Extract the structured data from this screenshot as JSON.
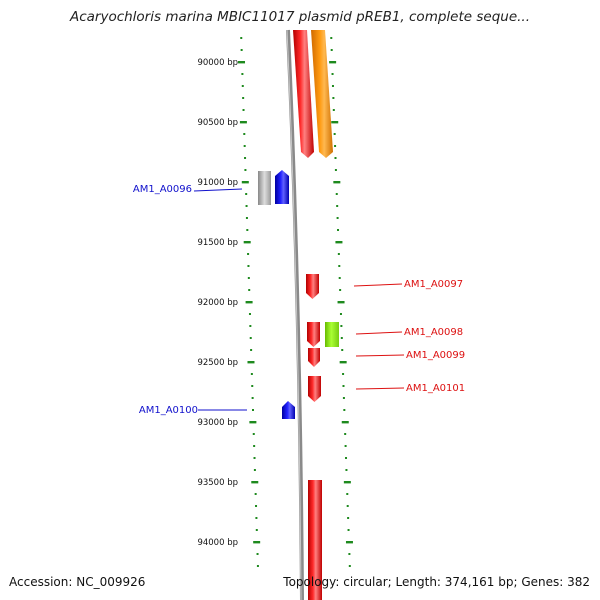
{
  "title": "Acaryochloris marina MBIC11017 plasmid pREB1, complete seque...",
  "footer": {
    "accession": "Accession: NC_009926",
    "topology": "Topology: circular; Length: 374,161 bp; Genes: 382"
  },
  "colors": {
    "backbone": "#8a8a8a",
    "tick": "#1e8a1e",
    "forward_gene": "#ee1111",
    "reverse_gene": "#1111ee",
    "label_forward": "#dd1111",
    "label_reverse": "#1111cc",
    "orange_feature": "#ff8c00",
    "lime_feature": "#99ee22",
    "gray_feature": "#aaaaaa"
  },
  "chart_data": {
    "type": "linear-genome-map",
    "axis_unit": "bp",
    "visible_range": [
      89560,
      94500
    ],
    "axis_labels": [
      "90000 bp",
      "90500 bp",
      "91000 bp",
      "91500 bp",
      "92000 bp",
      "92500 bp",
      "93000 bp",
      "93500 bp",
      "94000 bp"
    ],
    "axis_values": [
      90000,
      90500,
      91000,
      91500,
      92000,
      92500,
      93000,
      93500,
      94000
    ],
    "genes": [
      {
        "label": "AM1_A0096",
        "strand": "-",
        "color": "blue",
        "start": 90920,
        "end": 91200
      },
      {
        "label": "AM1_A0097",
        "strand": "+",
        "color": "red",
        "start": 91790,
        "end": 91990
      },
      {
        "label": "AM1_A0098",
        "strand": "+",
        "color": "red",
        "start": 92185,
        "end": 92400
      },
      {
        "label": "AM1_A0099",
        "strand": "+",
        "color": "red",
        "start": 92400,
        "end": 92545
      },
      {
        "label": "AM1_A0101",
        "strand": "+",
        "color": "red",
        "start": 92640,
        "end": 92855
      },
      {
        "label": "AM1_A0100",
        "strand": "-",
        "color": "blue",
        "start": 92835,
        "end": 92990
      }
    ],
    "unlabeled_features": [
      {
        "color": "red",
        "strand": "+",
        "start": 89560,
        "end": 90810
      },
      {
        "color": "orange",
        "strand": "+",
        "start": 89560,
        "end": 90810
      },
      {
        "color": "gray",
        "strand": "-",
        "start": 90920,
        "end": 91200
      },
      {
        "color": "lime",
        "strand": "+",
        "start": 92185,
        "end": 92400
      },
      {
        "color": "red",
        "strand": "+",
        "start": 93520,
        "end": 94500
      }
    ]
  }
}
